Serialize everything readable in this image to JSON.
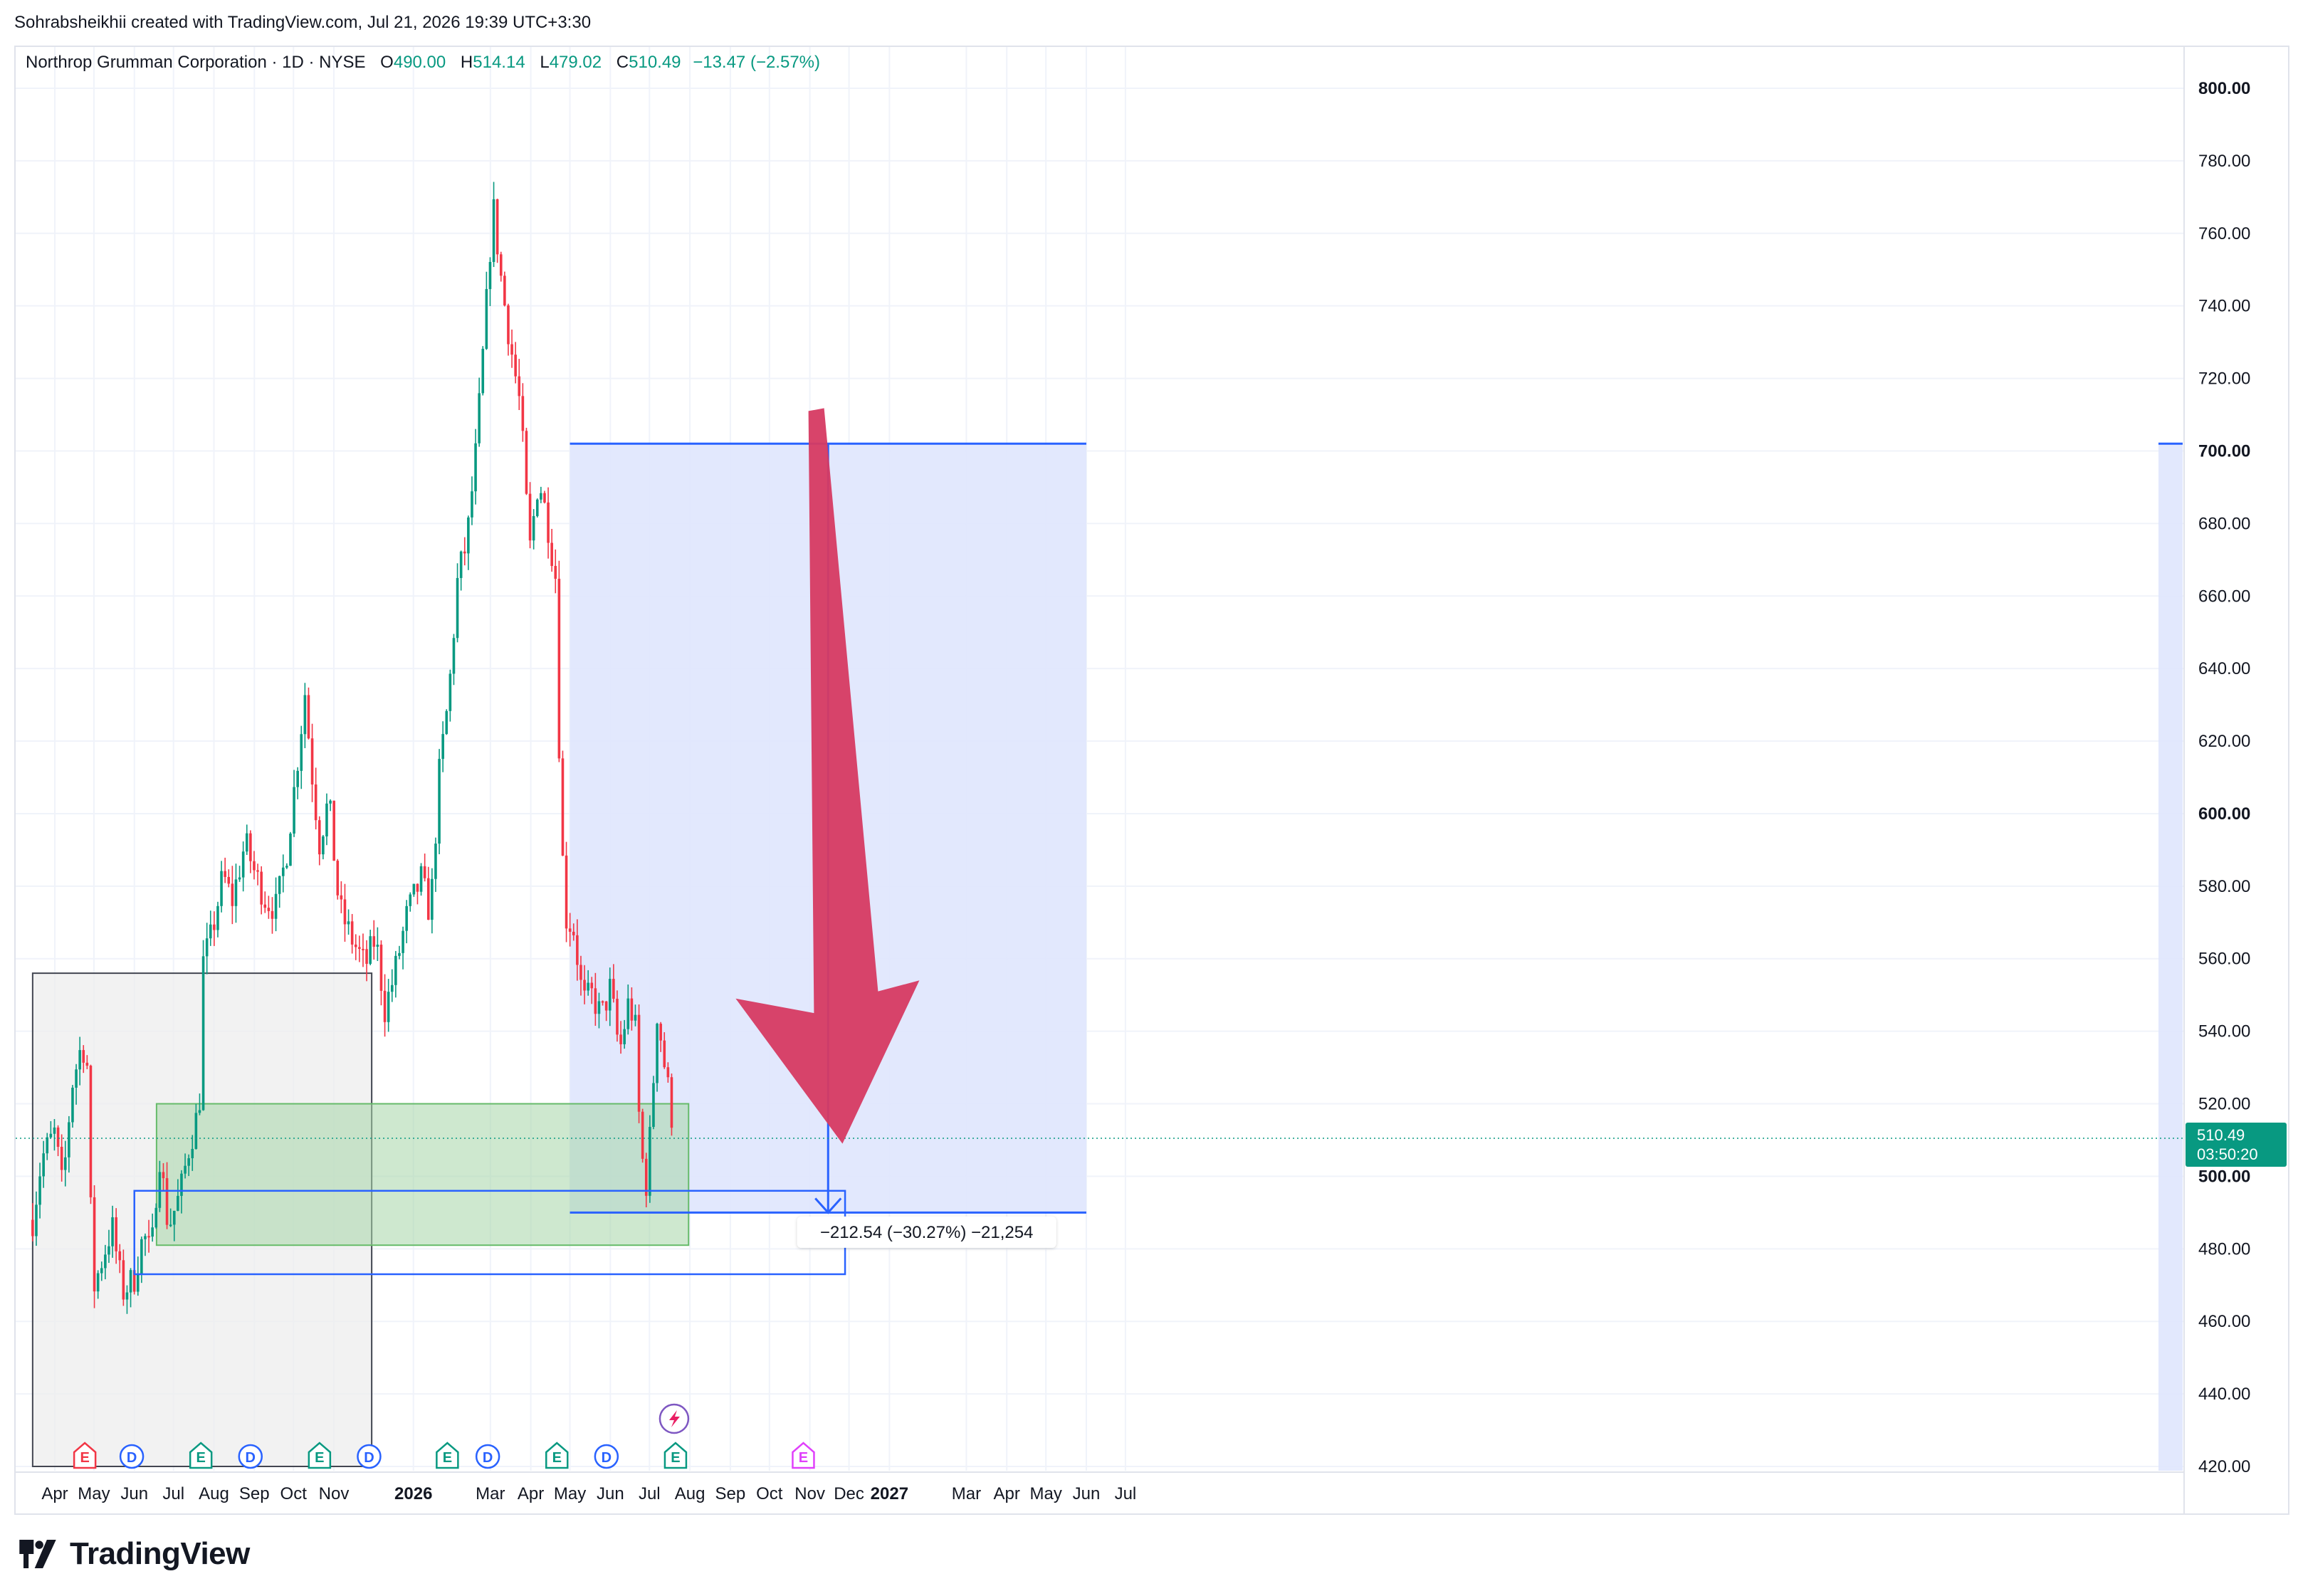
{
  "attribution": "Sohrabsheikhii created with TradingView.com, Jul 21, 2026 19:39 UTC+3:30",
  "legend": {
    "symbol": "Northrop Grumman Corporation · 1D · NYSE",
    "o_label": "O",
    "o_value": "490.00",
    "h_label": "H",
    "h_value": "514.14",
    "l_label": "L",
    "l_value": "479.02",
    "c_label": "C",
    "c_value": "510.49",
    "change": "−13.47 (−2.57%)"
  },
  "brand": {
    "name": "TradingView"
  },
  "colors": {
    "up": "#089981",
    "down": "#f23645",
    "grid": "#f0f3fa",
    "projection_fill": "#dfe6fd",
    "projection_line": "#2962ff",
    "green_zone": "#c8e6c9",
    "grey_zone": "#eeeeee",
    "arrow": "#d63a62"
  },
  "chart_data": {
    "type": "candlestick",
    "title": "Northrop Grumman Corporation · 1D · NYSE",
    "y_ticks": [
      "800.00",
      "780.00",
      "760.00",
      "740.00",
      "720.00",
      "700.00",
      "680.00",
      "660.00",
      "640.00",
      "620.00",
      "600.00",
      "580.00",
      "560.00",
      "540.00",
      "520.00",
      "500.00",
      "480.00",
      "460.00",
      "440.00",
      "420.00"
    ],
    "y_bold_ticks": [
      "800.00",
      "700.00",
      "600.00",
      "500.00"
    ],
    "ylim": [
      420,
      800
    ],
    "x_ticks": [
      {
        "label": "Apr",
        "date": "2025-04-01"
      },
      {
        "label": "May",
        "date": "2025-05-01"
      },
      {
        "label": "Jun",
        "date": "2025-06-01"
      },
      {
        "label": "Jul",
        "date": "2025-07-01"
      },
      {
        "label": "Aug",
        "date": "2025-08-01"
      },
      {
        "label": "Sep",
        "date": "2025-09-01"
      },
      {
        "label": "Oct",
        "date": "2025-10-01"
      },
      {
        "label": "Nov",
        "date": "2025-11-01"
      },
      {
        "label": "2026",
        "date": "2026-01-01",
        "bold": true
      },
      {
        "label": "Mar",
        "date": "2026-03-01"
      },
      {
        "label": "Apr",
        "date": "2026-04-01"
      },
      {
        "label": "May",
        "date": "2026-05-01"
      },
      {
        "label": "Jun",
        "date": "2026-06-01"
      },
      {
        "label": "Jul",
        "date": "2026-07-01"
      },
      {
        "label": "Aug",
        "date": "2026-08-01"
      },
      {
        "label": "Sep",
        "date": "2026-09-01"
      },
      {
        "label": "Oct",
        "date": "2026-10-01"
      },
      {
        "label": "Nov",
        "date": "2026-11-01"
      },
      {
        "label": "Dec",
        "date": "2026-12-01"
      },
      {
        "label": "2027",
        "date": "2027-01-01",
        "bold": true
      },
      {
        "label": "Mar",
        "date": "2027-03-01"
      },
      {
        "label": "Apr",
        "date": "2027-04-01"
      },
      {
        "label": "May",
        "date": "2027-05-01"
      },
      {
        "label": "Jun",
        "date": "2027-06-01"
      },
      {
        "label": "Jul",
        "date": "2027-07-01"
      }
    ],
    "price_path": [
      {
        "date": "2025-03-15",
        "price": 488
      },
      {
        "date": "2025-03-22",
        "price": 505
      },
      {
        "date": "2025-04-01",
        "price": 512
      },
      {
        "date": "2025-04-07",
        "price": 496
      },
      {
        "date": "2025-04-14",
        "price": 525
      },
      {
        "date": "2025-04-22",
        "price": 537
      },
      {
        "date": "2025-04-26",
        "price": 530
      },
      {
        "date": "2025-04-30",
        "price": 468
      },
      {
        "date": "2025-05-08",
        "price": 478
      },
      {
        "date": "2025-05-15",
        "price": 486
      },
      {
        "date": "2025-05-23",
        "price": 468
      },
      {
        "date": "2025-06-01",
        "price": 472
      },
      {
        "date": "2025-06-08",
        "price": 484
      },
      {
        "date": "2025-06-14",
        "price": 478
      },
      {
        "date": "2025-06-20",
        "price": 507
      },
      {
        "date": "2025-06-27",
        "price": 486
      },
      {
        "date": "2025-07-06",
        "price": 495
      },
      {
        "date": "2025-07-13",
        "price": 508
      },
      {
        "date": "2025-07-20",
        "price": 518
      },
      {
        "date": "2025-07-22",
        "price": 525
      },
      {
        "date": "2025-07-23",
        "price": 558
      },
      {
        "date": "2025-07-30",
        "price": 566
      },
      {
        "date": "2025-08-08",
        "price": 583
      },
      {
        "date": "2025-08-15",
        "price": 576
      },
      {
        "date": "2025-08-25",
        "price": 592
      },
      {
        "date": "2025-09-01",
        "price": 584
      },
      {
        "date": "2025-09-10",
        "price": 576
      },
      {
        "date": "2025-09-18",
        "price": 574
      },
      {
        "date": "2025-09-26",
        "price": 590
      },
      {
        "date": "2025-10-03",
        "price": 611
      },
      {
        "date": "2025-10-10",
        "price": 634
      },
      {
        "date": "2025-10-14",
        "price": 615
      },
      {
        "date": "2025-10-21",
        "price": 592
      },
      {
        "date": "2025-10-28",
        "price": 604
      },
      {
        "date": "2025-11-05",
        "price": 574
      },
      {
        "date": "2025-11-14",
        "price": 566
      },
      {
        "date": "2025-11-25",
        "price": 558
      },
      {
        "date": "2025-12-03",
        "price": 566
      },
      {
        "date": "2025-12-10",
        "price": 546
      },
      {
        "date": "2025-12-17",
        "price": 555
      },
      {
        "date": "2025-12-27",
        "price": 572
      },
      {
        "date": "2026-01-07",
        "price": 582
      },
      {
        "date": "2026-01-14",
        "price": 572
      },
      {
        "date": "2026-01-21",
        "price": 612
      },
      {
        "date": "2026-01-28",
        "price": 632
      },
      {
        "date": "2026-02-04",
        "price": 665
      },
      {
        "date": "2026-02-11",
        "price": 675
      },
      {
        "date": "2026-02-18",
        "price": 700
      },
      {
        "date": "2026-02-25",
        "price": 735
      },
      {
        "date": "2026-03-03",
        "price": 768
      },
      {
        "date": "2026-03-10",
        "price": 745
      },
      {
        "date": "2026-03-17",
        "price": 728
      },
      {
        "date": "2026-03-24",
        "price": 712
      },
      {
        "date": "2026-03-31",
        "price": 672
      },
      {
        "date": "2026-04-07",
        "price": 693
      },
      {
        "date": "2026-04-14",
        "price": 680
      },
      {
        "date": "2026-04-21",
        "price": 663
      },
      {
        "date": "2026-04-23",
        "price": 612
      },
      {
        "date": "2026-04-27",
        "price": 572
      },
      {
        "date": "2026-05-04",
        "price": 568
      },
      {
        "date": "2026-05-11",
        "price": 548
      },
      {
        "date": "2026-05-18",
        "price": 550
      },
      {
        "date": "2026-05-25",
        "price": 544
      },
      {
        "date": "2026-06-01",
        "price": 552
      },
      {
        "date": "2026-06-08",
        "price": 534
      },
      {
        "date": "2026-06-15",
        "price": 548
      },
      {
        "date": "2026-06-20",
        "price": 542
      },
      {
        "date": "2026-06-24",
        "price": 508
      },
      {
        "date": "2026-06-29",
        "price": 497
      },
      {
        "date": "2026-07-03",
        "price": 520
      },
      {
        "date": "2026-07-07",
        "price": 546
      },
      {
        "date": "2026-07-12",
        "price": 532
      },
      {
        "date": "2026-07-17",
        "price": 520
      },
      {
        "date": "2026-07-20",
        "price": 510.49
      }
    ],
    "last_price": {
      "value": "510.49",
      "countdown": "03:50:20"
    },
    "zones": {
      "grey_box": {
        "date_start": "2025-03-15",
        "date_end": "2025-11-30",
        "price_low": 420,
        "price_high": 556
      },
      "green_box": {
        "date_start": "2025-06-18",
        "date_end": "2026-07-31",
        "price_low": 481,
        "price_high": 520
      },
      "blue_outline_box": {
        "date_start": "2025-06-01",
        "date_end": "2026-11-28",
        "price_low": 473,
        "price_high": 496
      },
      "projection": {
        "date_start": "2026-05-01",
        "date_end": "2027-06-01",
        "price_high": 702,
        "price_low": 490
      }
    },
    "measurement_label": "−212.54 (−30.27%) −21,254",
    "events": [
      {
        "type": "E",
        "date": "2025-04-24",
        "color": "#f23645"
      },
      {
        "type": "D",
        "date": "2025-05-30",
        "color": "#2962ff"
      },
      {
        "type": "E",
        "date": "2025-07-22",
        "color": "#089981"
      },
      {
        "type": "D",
        "date": "2025-08-29",
        "color": "#2962ff"
      },
      {
        "type": "E",
        "date": "2025-10-21",
        "color": "#089981"
      },
      {
        "type": "D",
        "date": "2025-11-28",
        "color": "#2962ff"
      },
      {
        "type": "E",
        "date": "2026-01-27",
        "color": "#089981"
      },
      {
        "type": "D",
        "date": "2026-02-27",
        "color": "#2962ff"
      },
      {
        "type": "E",
        "date": "2026-04-21",
        "color": "#089981"
      },
      {
        "type": "D",
        "date": "2026-05-29",
        "color": "#2962ff"
      },
      {
        "type": "E",
        "date": "2026-07-21",
        "color": "#089981"
      },
      {
        "type": "E",
        "date": "2026-10-27",
        "color": "#e040fb"
      }
    ]
  }
}
